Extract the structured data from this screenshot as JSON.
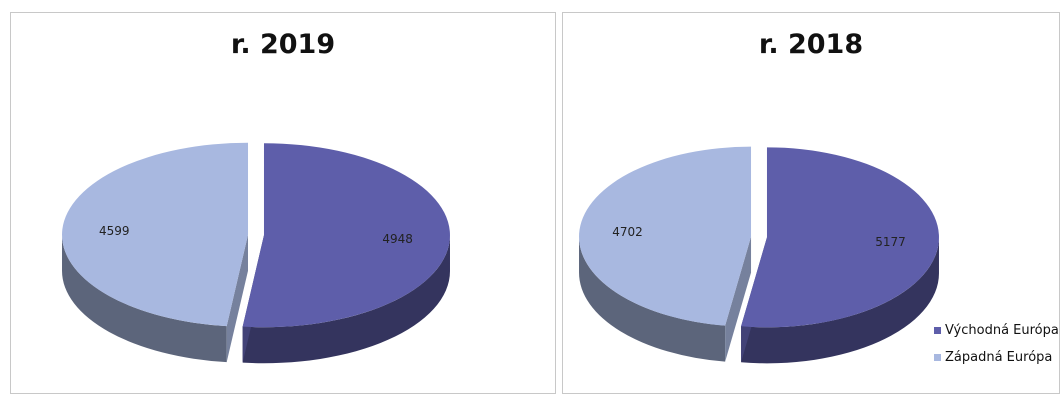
{
  "chart_data": [
    {
      "type": "pie",
      "title": "r. 2019",
      "slices": [
        {
          "label": "Východná Európa",
          "value": 4948,
          "color": "#5e5eaa"
        },
        {
          "label": "Západná Európa",
          "value": 4599,
          "color": "#a8b8e0"
        }
      ]
    },
    {
      "type": "pie",
      "title": "r. 2018",
      "slices": [
        {
          "label": "Východná Európa",
          "value": 5177,
          "color": "#5e5eaa"
        },
        {
          "label": "Západná Európa",
          "value": 4702,
          "color": "#a8b8e0"
        }
      ],
      "legend": [
        "Východná Európa",
        "Západná Európa"
      ],
      "legend_position": "bottom-right"
    }
  ]
}
